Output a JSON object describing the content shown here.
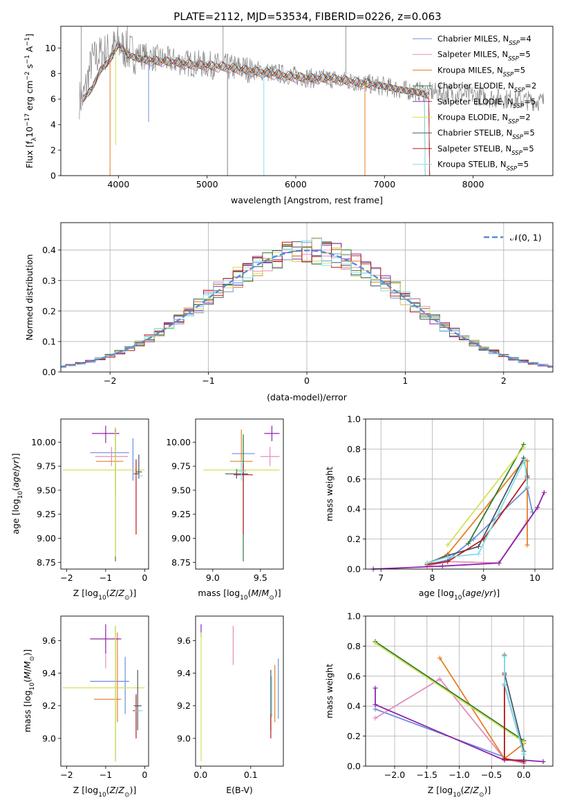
{
  "title": "PLATE=2112, MJD=53534, FIBERID=0226, z=0.063",
  "colors": {
    "Chabrier MILES": "#6a8fdc",
    "Salpeter MILES": "#e68bbd",
    "Kroupa MILES": "#e67e22",
    "Chabrier ELODIE": "#2e7d32",
    "Salpeter ELODIE": "#8e24aa",
    "Kroupa ELODIE": "#d4e157",
    "Chabrier STELIB": "#455a64",
    "Salpeter STELIB": "#b71c1c",
    "Kroupa STELIB": "#80deea",
    "data": "#808080",
    "normal": "#5b8bd6"
  },
  "chart_data": [
    {
      "id": "spectrum",
      "type": "line",
      "xlabel": "wavelength [Angstrom, rest frame]",
      "ylabel_parts": [
        "Flux [f",
        "λ",
        "10",
        "−17",
        " erg cm",
        "−2",
        " s",
        "−1",
        " A",
        "−1",
        "]"
      ],
      "xlim": [
        3350,
        8900
      ],
      "ylim": [
        0,
        11.7
      ],
      "xticks": [
        4000,
        5000,
        6000,
        7000,
        8000
      ],
      "yticks": [
        0,
        2,
        4,
        6,
        8,
        10
      ],
      "x": [
        3600,
        3700,
        3800,
        3900,
        4000,
        4100,
        4200,
        4400,
        4600,
        4800,
        5000,
        5200,
        5400,
        5600,
        5800,
        6000,
        6200,
        6400,
        6600,
        6800,
        7000,
        7200,
        7400,
        7600,
        7800,
        8000,
        8200,
        8400,
        8600,
        8800
      ],
      "data_values": [
        6.0,
        9.0,
        9.5,
        9.8,
        10.3,
        9.7,
        9.5,
        9.2,
        9.0,
        8.8,
        8.7,
        8.5,
        8.4,
        8.2,
        8.0,
        7.8,
        7.6,
        7.6,
        7.4,
        7.2,
        7.0,
        6.7,
        6.6,
        6.5,
        6.4,
        6.3,
        6.1,
        6.0,
        5.9,
        5.8
      ],
      "model_values": [
        6.0,
        6.8,
        8.3,
        9.0,
        10.3,
        9.5,
        9.2,
        9.0,
        8.9,
        8.7,
        8.6,
        8.5,
        8.3,
        8.1,
        7.9,
        7.7,
        7.6,
        7.6,
        7.4,
        7.2,
        7.0,
        6.7,
        6.5,
        6.0,
        5.8,
        5.6,
        5.4,
        5.2,
        5.2,
        5.1
      ],
      "model_end_x": [
        7500,
        7500,
        7500,
        7500,
        7500,
        7500,
        7450,
        7500,
        7450
      ],
      "dips": [
        {
          "x": 3905,
          "y": 0.0,
          "series": "Kroupa MILES"
        },
        {
          "x": 3970,
          "y": 2.4,
          "series": "Kroupa ELODIE"
        },
        {
          "x": 4340,
          "y": 4.2,
          "series": "Chabrier MILES"
        },
        {
          "x": 5230,
          "y": 0.0,
          "series": "data"
        },
        {
          "x": 5640,
          "y": 0.0,
          "series": "Kroupa STELIB"
        },
        {
          "x": 6780,
          "y": 0.0,
          "series": "Kroupa MILES"
        }
      ],
      "spikes": [
        {
          "x": 3580,
          "y": 11.7
        },
        {
          "x": 4100,
          "y": 11.7
        },
        {
          "x": 5180,
          "y": 11.7
        },
        {
          "x": 6565,
          "y": 11.7
        }
      ],
      "legend": [
        {
          "label": "Chabrier MILES, N",
          "sub": "SSP",
          "eq": "=4",
          "color": "#6a8fdc"
        },
        {
          "label": "Salpeter MILES, N",
          "sub": "SSP",
          "eq": "=5",
          "color": "#e68bbd"
        },
        {
          "label": "Kroupa MILES, N",
          "sub": "SSP",
          "eq": "=5",
          "color": "#e67e22"
        },
        {
          "label": "Chabrier ELODIE, N",
          "sub": "SSP",
          "eq": "=2",
          "color": "#2e7d32"
        },
        {
          "label": "Salpeter ELODIE, N",
          "sub": "SSP",
          "eq": "=5",
          "color": "#8e24aa"
        },
        {
          "label": "Kroupa ELODIE, N",
          "sub": "SSP",
          "eq": "=2",
          "color": "#d4e157"
        },
        {
          "label": "Chabrier STELIB, N",
          "sub": "SSP",
          "eq": "=5",
          "color": "#455a64"
        },
        {
          "label": "Salpeter STELIB, N",
          "sub": "SSP",
          "eq": "=5",
          "color": "#b71c1c"
        },
        {
          "label": "Kroupa STELIB, N",
          "sub": "SSP",
          "eq": "=5",
          "color": "#80deea"
        }
      ]
    },
    {
      "id": "residuals",
      "type": "line",
      "xlabel": "(data-model)/error",
      "ylabel": "Normed distribution",
      "xlim": [
        -2.5,
        2.5
      ],
      "ylim": [
        0,
        0.49
      ],
      "xticks": [
        -2,
        -1,
        0,
        1,
        2
      ],
      "yticks": [
        0.0,
        0.1,
        0.2,
        0.3,
        0.4
      ],
      "grid": true,
      "normal_label": "𝒩(0, 1)",
      "bin_width": 0.1
    },
    {
      "id": "age-vs-Z",
      "type": "scatter",
      "xlabel": "Z [log10(Z/Z⊙)]",
      "ylabel": "age  [log10(age/yr)]",
      "xlim": [
        -2.15,
        0.1
      ],
      "ylim": [
        8.68,
        10.24
      ],
      "xticks": [
        -2,
        -1,
        0
      ],
      "yticks": [
        8.75,
        9.0,
        9.25,
        9.5,
        9.75,
        10.0
      ],
      "points": [
        {
          "series": "Chabrier MILES",
          "x": -0.9,
          "y": 9.89,
          "xerr": 0.5,
          "yerr_lo": 0.0,
          "yerr_hi": 0.0
        },
        {
          "series": "Chabrier MILES",
          "x": -0.3,
          "y": 9.82,
          "xerr": 0.0,
          "yerr_lo": 0.22,
          "yerr_hi": 0.22
        },
        {
          "series": "Salpeter MILES",
          "x": -0.85,
          "y": 9.85,
          "xerr": 0.42,
          "yerr_lo": 0.1,
          "yerr_hi": 0.1
        },
        {
          "series": "Kroupa MILES",
          "x": -0.9,
          "y": 9.8,
          "xerr": 0.35,
          "yerr_lo": 0.0,
          "yerr_hi": 0.0
        },
        {
          "series": "Kroupa MILES",
          "x": -0.75,
          "y": 9.75,
          "xerr": 0.0,
          "yerr_lo": 0.3,
          "yerr_hi": 0.4
        },
        {
          "series": "Chabrier ELODIE",
          "x": -0.75,
          "y": 9.72,
          "xerr": 0.0,
          "yerr_lo": 0.96,
          "yerr_hi": 0.4
        },
        {
          "series": "Salpeter ELODIE",
          "x": -1.0,
          "y": 10.09,
          "xerr": 0.35,
          "yerr_lo": 0.1,
          "yerr_hi": 0.08
        },
        {
          "series": "Kroupa ELODIE",
          "x": -1.05,
          "y": 9.71,
          "xerr": 1.05,
          "yerr_lo": 0.0,
          "yerr_hi": 0.0
        },
        {
          "series": "Kroupa ELODIE",
          "x": -0.75,
          "y": 9.71,
          "xerr": 0.0,
          "yerr_lo": 0.9,
          "yerr_hi": 0.4
        },
        {
          "series": "Chabrier STELIB",
          "x": -0.15,
          "y": 9.69,
          "xerr": 0.08,
          "yerr_lo": 0.07,
          "yerr_hi": 0.18
        },
        {
          "series": "Salpeter STELIB",
          "x": -0.22,
          "y": 9.67,
          "xerr": 0.06,
          "yerr_lo": 0.63,
          "yerr_hi": 0.15
        },
        {
          "series": "Kroupa STELIB",
          "x": -0.15,
          "y": 9.65,
          "xerr": 0.1,
          "yerr_lo": 0.0,
          "yerr_hi": 0.0
        }
      ]
    },
    {
      "id": "age-vs-mass",
      "type": "scatter",
      "xlabel": "mass [log10(M/M⊙)]",
      "xlim": [
        8.82,
        9.74
      ],
      "ylim": [
        8.68,
        10.24
      ],
      "xticks": [
        9.0,
        9.5
      ],
      "yticks": [
        8.75,
        9.0,
        9.25,
        9.5,
        9.75,
        10.0
      ],
      "points": [
        {
          "series": "Chabrier MILES",
          "x": 9.32,
          "y": 9.88,
          "xerr": 0.12,
          "yerr_lo": 0.28,
          "yerr_hi": 0.15
        },
        {
          "series": "Salpeter MILES",
          "x": 9.6,
          "y": 9.85,
          "xerr": 0.1,
          "yerr_lo": 0.1,
          "yerr_hi": 0.1
        },
        {
          "series": "Kroupa MILES",
          "x": 9.3,
          "y": 9.8,
          "xerr": 0.12,
          "yerr_lo": 0.1,
          "yerr_hi": 0.33
        },
        {
          "series": "Chabrier ELODIE",
          "x": 9.32,
          "y": 9.72,
          "xerr": 0.0,
          "yerr_lo": 0.96,
          "yerr_hi": 0.36
        },
        {
          "series": "Salpeter ELODIE",
          "x": 9.62,
          "y": 10.09,
          "xerr": 0.08,
          "yerr_lo": 0.08,
          "yerr_hi": 0.08
        },
        {
          "series": "Kroupa ELODIE",
          "x": 9.3,
          "y": 9.71,
          "xerr": 0.4,
          "yerr_lo": 0.0,
          "yerr_hi": 0.0
        },
        {
          "series": "Chabrier STELIB",
          "x": 9.25,
          "y": 9.67,
          "xerr": 0.12,
          "yerr_lo": 0.05,
          "yerr_hi": 0.05
        },
        {
          "series": "Salpeter STELIB",
          "x": 9.32,
          "y": 9.66,
          "xerr": 0.1,
          "yerr_lo": 0.62,
          "yerr_hi": 0.12
        },
        {
          "series": "Kroupa STELIB",
          "x": 9.3,
          "y": 9.7,
          "xerr": 0.05,
          "yerr_lo": 0.1,
          "yerr_hi": 0.1
        }
      ]
    },
    {
      "id": "weight-vs-age",
      "type": "line",
      "xlabel": "age  [log10(age/yr)]",
      "ylabel": "mass weight",
      "xlim": [
        6.7,
        10.35
      ],
      "ylim": [
        0,
        1.0
      ],
      "xticks": [
        7,
        8,
        9,
        10
      ],
      "yticks": [
        0.0,
        0.2,
        0.4,
        0.6,
        0.8,
        1.0
      ],
      "grid": true,
      "series": [
        {
          "name": "Chabrier MILES",
          "x": [
            7.9,
            8.3,
            8.8,
            9.85,
            9.95
          ],
          "y": [
            0.03,
            0.06,
            0.2,
            0.54,
            0.38
          ]
        },
        {
          "name": "Salpeter MILES",
          "x": [
            7.9,
            8.3,
            9.3,
            9.85
          ],
          "y": [
            0.02,
            0.05,
            0.04,
            0.32
          ]
        },
        {
          "name": "Kroupa MILES",
          "x": [
            7.9,
            8.3,
            9.8,
            9.85,
            9.85
          ],
          "y": [
            0.03,
            0.1,
            0.73,
            0.72,
            0.16
          ]
        },
        {
          "name": "Chabrier ELODIE",
          "x": [
            8.7,
            9.78
          ],
          "y": [
            0.17,
            0.83
          ]
        },
        {
          "name": "Salpeter ELODIE",
          "x": [
            6.85,
            8.2,
            9.3,
            10.05,
            10.18
          ],
          "y": [
            0.0,
            0.02,
            0.04,
            0.41,
            0.51
          ]
        },
        {
          "name": "Kroupa ELODIE",
          "x": [
            8.3,
            9.78
          ],
          "y": [
            0.16,
            0.81
          ]
        },
        {
          "name": "Chabrier STELIB",
          "x": [
            7.9,
            8.3,
            8.9,
            9.78,
            9.85
          ],
          "y": [
            0.04,
            0.09,
            0.15,
            0.74,
            0.62
          ]
        },
        {
          "name": "Salpeter STELIB",
          "x": [
            7.9,
            8.3,
            9.0,
            9.85
          ],
          "y": [
            0.03,
            0.05,
            0.2,
            0.61
          ]
        },
        {
          "name": "Kroupa STELIB",
          "x": [
            7.9,
            8.3,
            8.9,
            9.8,
            9.85
          ],
          "y": [
            0.04,
            0.08,
            0.1,
            0.73,
            0.55
          ]
        }
      ]
    },
    {
      "id": "mass-vs-Z",
      "type": "scatter",
      "xlabel": "Z [log10(Z/Z⊙)]",
      "ylabel": "mass [log10(M/M⊙)]",
      "xlim": [
        -2.15,
        0.1
      ],
      "ylim": [
        8.83,
        9.75
      ],
      "xticks": [
        -2,
        -1,
        0
      ],
      "yticks": [
        9.0,
        9.2,
        9.4,
        9.6
      ],
      "points": [
        {
          "series": "Chabrier MILES",
          "x": -0.9,
          "y": 9.35,
          "xerr": 0.5,
          "yerr_lo": 0.0,
          "yerr_hi": 0.0
        },
        {
          "series": "Chabrier MILES",
          "x": -0.5,
          "y": 9.35,
          "xerr": 0.0,
          "yerr_lo": 0.2,
          "yerr_hi": 0.15
        },
        {
          "series": "Salpeter MILES",
          "x": -1.0,
          "y": 9.55,
          "xerr": 0.0,
          "yerr_lo": 0.12,
          "yerr_hi": 0.12
        },
        {
          "series": "Kroupa MILES",
          "x": -0.95,
          "y": 9.24,
          "xerr": 0.35,
          "yerr_lo": 0.0,
          "yerr_hi": 0.0
        },
        {
          "series": "Kroupa MILES",
          "x": -0.7,
          "y": 9.3,
          "xerr": 0.0,
          "yerr_lo": 0.2,
          "yerr_hi": 0.35
        },
        {
          "series": "Chabrier ELODIE",
          "x": -0.75,
          "y": 9.31,
          "xerr": 0.0,
          "yerr_lo": 0.45,
          "yerr_hi": 0.38
        },
        {
          "series": "Salpeter ELODIE",
          "x": -1.0,
          "y": 9.61,
          "xerr": 0.4,
          "yerr_lo": 0.09,
          "yerr_hi": 0.09
        },
        {
          "series": "Kroupa ELODIE",
          "x": -1.05,
          "y": 9.31,
          "xerr": 1.05,
          "yerr_lo": 0.0,
          "yerr_hi": 0.0
        },
        {
          "series": "Kroupa ELODIE",
          "x": -0.75,
          "y": 9.31,
          "xerr": 0.0,
          "yerr_lo": 0.45,
          "yerr_hi": 0.38
        },
        {
          "series": "Chabrier STELIB",
          "x": -0.18,
          "y": 9.2,
          "xerr": 0.1,
          "yerr_lo": 0.15,
          "yerr_hi": 0.22
        },
        {
          "series": "Salpeter STELIB",
          "x": -0.22,
          "y": 9.17,
          "xerr": 0.08,
          "yerr_lo": 0.17,
          "yerr_hi": 0.1
        },
        {
          "series": "Kroupa STELIB",
          "x": -0.15,
          "y": 9.17,
          "xerr": 0.1,
          "yerr_lo": 0.0,
          "yerr_hi": 0.0
        }
      ]
    },
    {
      "id": "mass-vs-ebv",
      "type": "scatter",
      "xlabel": "E(B-V)",
      "xlim": [
        -0.01,
        0.165
      ],
      "ylim": [
        8.83,
        9.75
      ],
      "xticks": [
        0.0,
        0.1
      ],
      "yticks": [
        9.0,
        9.2,
        9.4,
        9.6
      ],
      "points": [
        {
          "series": "Salpeter ELODIE",
          "x": 0.001,
          "y": 9.65,
          "xerr": 0.0,
          "yerr_lo": 0.03,
          "yerr_hi": 0.05
        },
        {
          "series": "Kroupa ELODIE",
          "x": 0.001,
          "y": 9.3,
          "xerr": 0.0,
          "yerr_lo": 0.44,
          "yerr_hi": 0.35
        },
        {
          "series": "Salpeter MILES",
          "x": 0.065,
          "y": 9.57,
          "xerr": 0.0,
          "yerr_lo": 0.12,
          "yerr_hi": 0.12
        },
        {
          "series": "Chabrier STELIB",
          "x": 0.14,
          "y": 9.22,
          "xerr": 0.0,
          "yerr_lo": 0.17,
          "yerr_hi": 0.2
        },
        {
          "series": "Salpeter STELIB",
          "x": 0.14,
          "y": 9.1,
          "xerr": 0.0,
          "yerr_lo": 0.1,
          "yerr_hi": 0.05
        },
        {
          "series": "Kroupa MILES",
          "x": 0.148,
          "y": 9.25,
          "xerr": 0.0,
          "yerr_lo": 0.15,
          "yerr_hi": 0.2
        },
        {
          "series": "Chabrier MILES",
          "x": 0.155,
          "y": 9.32,
          "xerr": 0.0,
          "yerr_lo": 0.2,
          "yerr_hi": 0.17
        },
        {
          "series": "Kroupa STELIB",
          "x": 0.142,
          "y": 9.28,
          "xerr": 0.0,
          "yerr_lo": 0.15,
          "yerr_hi": 0.1
        }
      ]
    },
    {
      "id": "weight-vs-Z",
      "type": "line",
      "xlabel": "Z [log10(Z/Z⊙)]",
      "ylabel": "mass weight",
      "xlim": [
        -2.45,
        0.45
      ],
      "ylim": [
        0,
        1.0
      ],
      "xticks": [
        -2.0,
        -1.5,
        -1.0,
        -0.5,
        0.0
      ],
      "yticks": [
        0.0,
        0.2,
        0.4,
        0.6,
        0.8,
        1.0
      ],
      "grid": true,
      "series": [
        {
          "name": "Chabrier MILES",
          "x": [
            -2.3,
            -0.3,
            -0.3,
            0.0,
            0.0
          ],
          "y": [
            0.38,
            0.06,
            0.54,
            0.08,
            0.02
          ]
        },
        {
          "name": "Salpeter MILES",
          "x": [
            -2.3,
            -1.3,
            -0.3,
            0.0
          ],
          "y": [
            0.32,
            0.58,
            0.05,
            0.02
          ]
        },
        {
          "name": "Kroupa MILES",
          "x": [
            -1.3,
            -0.3,
            0.0
          ],
          "y": [
            0.72,
            0.05,
            0.15
          ]
        },
        {
          "name": "Chabrier ELODIE",
          "x": [
            -2.3,
            0.0
          ],
          "y": [
            0.83,
            0.17
          ]
        },
        {
          "name": "Salpeter ELODIE",
          "x": [
            -2.3,
            -2.3,
            -0.3,
            0.0,
            0.3
          ],
          "y": [
            0.52,
            0.41,
            0.04,
            0.04,
            0.03
          ]
        },
        {
          "name": "Kroupa ELODIE",
          "x": [
            -2.3,
            0.0
          ],
          "y": [
            0.82,
            0.16
          ]
        },
        {
          "name": "Chabrier STELIB",
          "x": [
            -0.3,
            -0.3,
            0.0,
            0.0
          ],
          "y": [
            0.74,
            0.62,
            0.1,
            0.04
          ]
        },
        {
          "name": "Salpeter STELIB",
          "x": [
            -0.3,
            -0.3,
            0.0
          ],
          "y": [
            0.61,
            0.05,
            0.03
          ]
        },
        {
          "name": "Kroupa STELIB",
          "x": [
            -0.3,
            -0.3,
            0.0
          ],
          "y": [
            0.73,
            0.55,
            0.08
          ]
        }
      ]
    }
  ]
}
